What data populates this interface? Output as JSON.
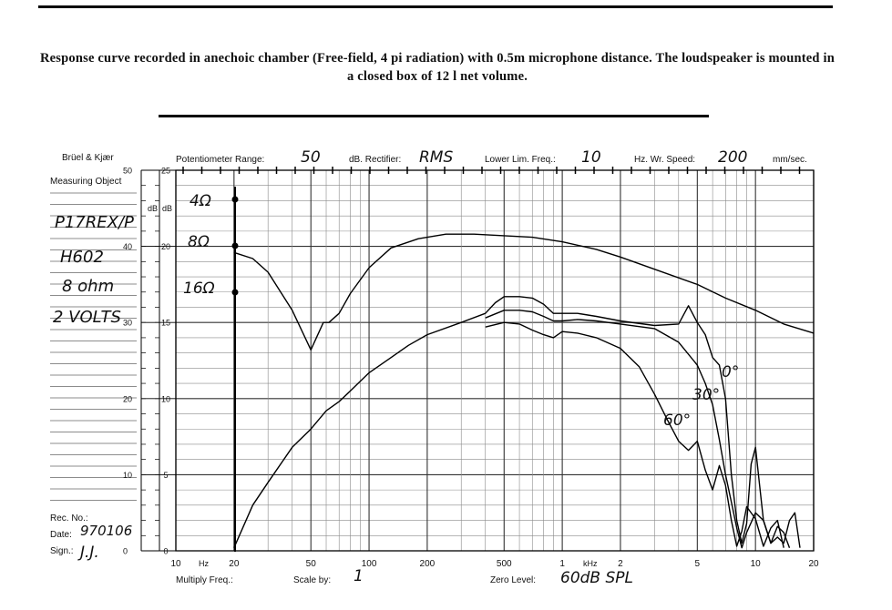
{
  "caption": "Response curve recorded in anechoic chamber (Free-field, 4 pi radiation) with 0.5m microphone distance. The loudspeaker is mounted in a closed box of 12 l net volume.",
  "sheet": {
    "brand": "Brüel & Kjær",
    "measuring_object_label": "Measuring Object",
    "object_lines": [
      "P17REX/P",
      "H602",
      "8 ohm",
      "2 VOLTS"
    ],
    "potentiometer_label": "Potentiometer Range:",
    "potentiometer_value": "50",
    "rectifier_label": "dB. Rectifier:",
    "rectifier_value": "RMS",
    "lower_lim_label": "Lower Lim. Freq.:",
    "lower_lim_value": "10",
    "writing_speed_label": "Hz. Wr. Speed:",
    "writing_speed_value": "200",
    "writing_speed_unit": "mm/sec.",
    "rec_no_label": "Rec. No.:",
    "date_label": "Date:",
    "date_value": "970106",
    "sign_label": "Sign.:",
    "sign_value": "J.J.",
    "multiply_label": "Multiply Freq.:",
    "scale_label": "Scale by:",
    "scale_value": "1",
    "zero_level_label": "Zero Level:",
    "zero_level_value": "60dB SPL",
    "hz_label": "Hz",
    "khz_label": "kHz",
    "db_label": "dB"
  },
  "impedance_markers": [
    "4Ω",
    "8Ω",
    "16Ω"
  ],
  "curve_labels": [
    "0°",
    "30°",
    "60°"
  ],
  "chart_data": {
    "type": "line",
    "x_scale": "log",
    "xlim": [
      10,
      20000
    ],
    "ylim": [
      0,
      25
    ],
    "y_scale_outer": [
      0,
      50
    ],
    "x_tick_labels": [
      "10",
      "20",
      "50",
      "100",
      "200",
      "500",
      "1",
      "2",
      "5",
      "10",
      "20"
    ],
    "y_tick_labels_outer": [
      "0",
      "10",
      "20",
      "30",
      "40",
      "50"
    ],
    "y_tick_labels_inner": [
      "0",
      "5",
      "10",
      "15",
      "20",
      "25"
    ],
    "grid": true,
    "series": [
      {
        "name": "impedance",
        "points": [
          [
            20,
            19.6
          ],
          [
            25,
            19.2
          ],
          [
            30,
            18.3
          ],
          [
            40,
            15.8
          ],
          [
            50,
            13.2
          ],
          [
            58,
            15.0
          ],
          [
            62,
            15.0
          ],
          [
            70,
            15.6
          ],
          [
            80,
            16.9
          ],
          [
            100,
            18.6
          ],
          [
            130,
            19.9
          ],
          [
            180,
            20.5
          ],
          [
            250,
            20.8
          ],
          [
            350,
            20.8
          ],
          [
            500,
            20.7
          ],
          [
            700,
            20.6
          ],
          [
            1000,
            20.3
          ],
          [
            1500,
            19.8
          ],
          [
            2000,
            19.3
          ],
          [
            3000,
            18.5
          ],
          [
            5000,
            17.5
          ],
          [
            7000,
            16.6
          ],
          [
            10000,
            15.8
          ],
          [
            14000,
            14.9
          ],
          [
            20000,
            14.3
          ]
        ]
      },
      {
        "name": "0°",
        "points": [
          [
            20,
            0.2
          ],
          [
            25,
            3.0
          ],
          [
            30,
            4.5
          ],
          [
            40,
            6.8
          ],
          [
            50,
            8.0
          ],
          [
            60,
            9.2
          ],
          [
            70,
            9.8
          ],
          [
            80,
            10.5
          ],
          [
            100,
            11.7
          ],
          [
            130,
            12.7
          ],
          [
            160,
            13.5
          ],
          [
            200,
            14.2
          ],
          [
            300,
            15.0
          ],
          [
            400,
            15.6
          ],
          [
            450,
            16.3
          ],
          [
            500,
            16.7
          ],
          [
            600,
            16.7
          ],
          [
            700,
            16.6
          ],
          [
            800,
            16.2
          ],
          [
            900,
            15.6
          ],
          [
            1000,
            15.6
          ],
          [
            1200,
            15.6
          ],
          [
            1500,
            15.4
          ],
          [
            2000,
            15.1
          ],
          [
            3000,
            14.8
          ],
          [
            4000,
            14.9
          ],
          [
            4500,
            16.1
          ],
          [
            5000,
            15.0
          ],
          [
            5500,
            14.2
          ],
          [
            6000,
            12.7
          ],
          [
            6500,
            12.2
          ],
          [
            7000,
            10.0
          ],
          [
            7500,
            5.0
          ],
          [
            8000,
            2.0
          ],
          [
            8500,
            0.5
          ],
          [
            9000,
            1.8
          ],
          [
            9500,
            5.7
          ],
          [
            10000,
            6.8
          ],
          [
            10500,
            4.3
          ],
          [
            11000,
            2.0
          ],
          [
            12000,
            0.5
          ],
          [
            13000,
            0.9
          ],
          [
            14000,
            0.5
          ],
          [
            15000,
            2.0
          ],
          [
            16000,
            2.5
          ],
          [
            17000,
            0.2
          ]
        ]
      },
      {
        "name": "30°",
        "points": [
          [
            400,
            15.3
          ],
          [
            500,
            15.8
          ],
          [
            600,
            15.8
          ],
          [
            700,
            15.7
          ],
          [
            800,
            15.4
          ],
          [
            900,
            15.1
          ],
          [
            1000,
            15.1
          ],
          [
            1200,
            15.2
          ],
          [
            1500,
            15.1
          ],
          [
            2000,
            14.9
          ],
          [
            3000,
            14.6
          ],
          [
            4000,
            13.7
          ],
          [
            5000,
            12.2
          ],
          [
            5500,
            11.0
          ],
          [
            6000,
            9.6
          ],
          [
            6500,
            7.3
          ],
          [
            7000,
            5.0
          ],
          [
            7500,
            3.2
          ],
          [
            8000,
            1.5
          ],
          [
            8500,
            0.2
          ],
          [
            9000,
            1.2
          ],
          [
            10000,
            2.5
          ],
          [
            11000,
            2.0
          ],
          [
            12000,
            0.5
          ],
          [
            13000,
            1.6
          ],
          [
            14000,
            1.2
          ],
          [
            15000,
            0.2
          ]
        ]
      },
      {
        "name": "60°",
        "points": [
          [
            400,
            14.7
          ],
          [
            500,
            15.0
          ],
          [
            600,
            14.9
          ],
          [
            700,
            14.5
          ],
          [
            800,
            14.2
          ],
          [
            900,
            14.0
          ],
          [
            1000,
            14.4
          ],
          [
            1200,
            14.3
          ],
          [
            1500,
            14.0
          ],
          [
            2000,
            13.3
          ],
          [
            2500,
            12.1
          ],
          [
            3000,
            10.3
          ],
          [
            3500,
            8.6
          ],
          [
            4000,
            7.2
          ],
          [
            4500,
            6.6
          ],
          [
            5000,
            7.2
          ],
          [
            5500,
            5.3
          ],
          [
            6000,
            4.0
          ],
          [
            6500,
            5.6
          ],
          [
            7000,
            4.3
          ],
          [
            7500,
            2.0
          ],
          [
            8000,
            0.3
          ],
          [
            8500,
            1.3
          ],
          [
            9000,
            2.9
          ],
          [
            10000,
            2.1
          ],
          [
            11000,
            0.3
          ],
          [
            12000,
            1.5
          ],
          [
            13000,
            2.0
          ],
          [
            14000,
            0.2
          ]
        ]
      }
    ]
  }
}
